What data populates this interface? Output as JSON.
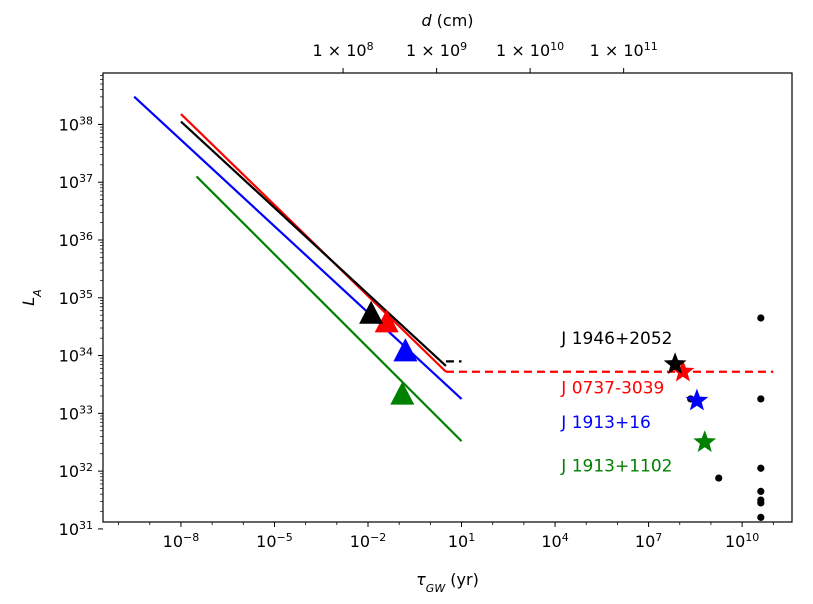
{
  "chart_data": {
    "type": "line",
    "xscale": "log",
    "yscale": "log",
    "xlabel": "τ",
    "xlabel_sub": "GW",
    "xlabel_unit": "(yr)",
    "ylabel": "L",
    "ylabel_sub": "A",
    "top_xlabel": "d",
    "top_xlabel_unit": "(cm)",
    "xlim_log10": [
      -10.5,
      11.6
    ],
    "ylim_log10": [
      31.12,
      38.89
    ],
    "x_ticks": [
      {
        "log": -8,
        "label": "10",
        "exp": "−8"
      },
      {
        "log": -5,
        "label": "10",
        "exp": "−5"
      },
      {
        "log": -2,
        "label": "10",
        "exp": "−2"
      },
      {
        "log": 1,
        "label": "10",
        "exp": "1"
      },
      {
        "log": 4,
        "label": "10",
        "exp": "4"
      },
      {
        "log": 7,
        "label": "10",
        "exp": "7"
      },
      {
        "log": 10,
        "label": "10",
        "exp": "10"
      }
    ],
    "y_ticks": [
      {
        "log": 31,
        "label": "10",
        "exp": "31"
      },
      {
        "log": 32,
        "label": "10",
        "exp": "32"
      },
      {
        "log": 33,
        "label": "10",
        "exp": "33"
      },
      {
        "log": 34,
        "label": "10",
        "exp": "34"
      },
      {
        "log": 35,
        "label": "10",
        "exp": "35"
      },
      {
        "log": 36,
        "label": "10",
        "exp": "36"
      },
      {
        "log": 37,
        "label": "10",
        "exp": "37"
      },
      {
        "log": 38,
        "label": "10",
        "exp": "38"
      }
    ],
    "top_ticks": [
      {
        "x_log": -2.8,
        "label": "1 × 10",
        "exp": "8"
      },
      {
        "x_log": 0.2,
        "label": "1 × 10",
        "exp": "9"
      },
      {
        "x_log": 3.2,
        "label": "1 × 10",
        "exp": "10"
      },
      {
        "x_log": 6.2,
        "label": "1 × 10",
        "exp": "11"
      }
    ],
    "series": [
      {
        "name": "J 1946+2052",
        "color": "#000000",
        "line": [
          [
            -8.0,
            38.05
          ],
          [
            0.5,
            33.82
          ]
        ],
        "triangle": [
          -1.9,
          34.7
        ],
        "dash": [
          [
            0.5,
            33.9
          ],
          [
            1.0,
            33.9
          ]
        ],
        "star": [
          7.85,
          33.85
        ],
        "label_pos": [
          34.3
        ]
      },
      {
        "name": "J 0737-3039",
        "color": "#ff0000",
        "line": [
          [
            -8.0,
            38.18
          ],
          [
            0.5,
            33.72
          ]
        ],
        "triangle": [
          -1.4,
          34.55
        ],
        "dash": [
          [
            0.5,
            33.72
          ],
          [
            11.0,
            33.72
          ]
        ],
        "star": [
          8.1,
          33.72
        ],
        "label_pos": [
          33.45
        ]
      },
      {
        "name": "J 1913+16",
        "color": "#0000ff",
        "line": [
          [
            -9.5,
            38.48
          ],
          [
            1.0,
            33.25
          ]
        ],
        "triangle": [
          -0.8,
          34.05
        ],
        "star": [
          8.55,
          33.22
        ],
        "label_pos": [
          32.85
        ]
      },
      {
        "name": "J 1913+1102",
        "color": "#008000",
        "line": [
          [
            -7.5,
            37.1
          ],
          [
            1.0,
            32.52
          ]
        ],
        "triangle": [
          -0.9,
          33.3
        ],
        "star": [
          8.8,
          32.5
        ],
        "label_pos": [
          32.1
        ]
      }
    ],
    "black_points": [
      [
        8.35,
        33.25
      ],
      [
        9.25,
        31.88
      ],
      [
        10.6,
        34.65
      ],
      [
        10.6,
        33.25
      ],
      [
        10.6,
        32.05
      ],
      [
        10.6,
        31.65
      ],
      [
        10.6,
        31.5
      ],
      [
        10.6,
        31.45
      ],
      [
        10.6,
        31.2
      ]
    ]
  }
}
